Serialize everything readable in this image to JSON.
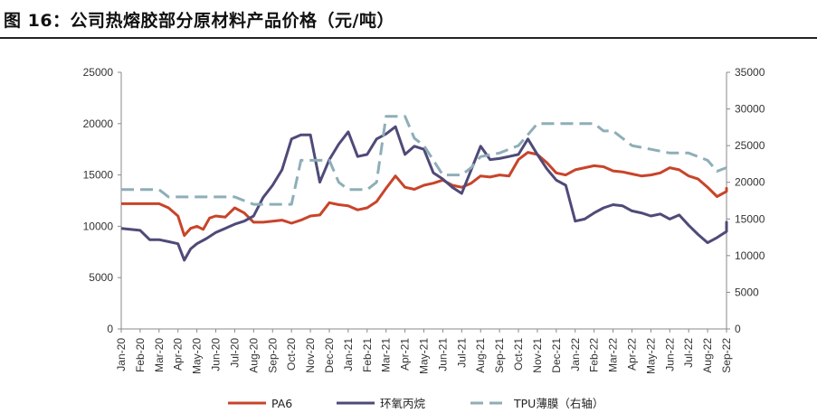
{
  "figure": {
    "title": "图 16：公司热熔胶部分原材料产品价格（元/吨）"
  },
  "chart_data": {
    "type": "line",
    "title": "图 16：公司热熔胶部分原材料产品价格（元/吨）",
    "x_ticks": [
      "Jan-20",
      "Feb-20",
      "Mar-20",
      "Apr-20",
      "May-20",
      "Jun-20",
      "Jul-20",
      "Aug-20",
      "Sep-20",
      "Oct-20",
      "Nov-20",
      "Dec-20",
      "Jan-21",
      "Feb-21",
      "Mar-21",
      "Apr-21",
      "May-21",
      "Jun-21",
      "Jul-21",
      "Aug-21",
      "Sep-21",
      "Oct-21",
      "Nov-21",
      "Dec-21",
      "Jan-22",
      "Feb-22",
      "Mar-22",
      "Apr-22",
      "May-22",
      "Jun-22",
      "Jul-22",
      "Aug-22",
      "Sep-22"
    ],
    "x_range": [
      "Jan-20",
      "Sep-22"
    ],
    "y_left": {
      "min": 0,
      "max": 25000,
      "ticks": [
        0,
        5000,
        10000,
        15000,
        20000,
        25000
      ]
    },
    "y_right": {
      "min": 0,
      "max": 35000,
      "ticks": [
        0,
        5000,
        10000,
        15000,
        20000,
        25000,
        30000,
        35000
      ]
    },
    "legend_position": "bottom",
    "grid": false,
    "series": [
      {
        "name": "PA6",
        "axis": "left",
        "color": "#c8442a",
        "style": "solid",
        "points": [
          [
            "Jan-20",
            12200
          ],
          [
            "Feb-20",
            12200
          ],
          [
            "Mar-20",
            12200
          ],
          [
            "Mar-20",
            11800
          ],
          [
            "Apr-20",
            11000
          ],
          [
            "Apr-20",
            9100
          ],
          [
            "Apr-20",
            9800
          ],
          [
            "May-20",
            10000
          ],
          [
            "May-20",
            9700
          ],
          [
            "May-20",
            10800
          ],
          [
            "Jun-20",
            11000
          ],
          [
            "Jun-20",
            10900
          ],
          [
            "Jul-20",
            11800
          ],
          [
            "Jul-20",
            11300
          ],
          [
            "Aug-20",
            10400
          ],
          [
            "Aug-20",
            10400
          ],
          [
            "Sep-20",
            10500
          ],
          [
            "Sep-20",
            10600
          ],
          [
            "Oct-20",
            10300
          ],
          [
            "Oct-20",
            10600
          ],
          [
            "Nov-20",
            11000
          ],
          [
            "Nov-20",
            11100
          ],
          [
            "Dec-20",
            12300
          ],
          [
            "Dec-20",
            12100
          ],
          [
            "Jan-21",
            12000
          ],
          [
            "Jan-21",
            11600
          ],
          [
            "Feb-21",
            11800
          ],
          [
            "Feb-21",
            12400
          ],
          [
            "Mar-21",
            13700
          ],
          [
            "Mar-21",
            14900
          ],
          [
            "Apr-21",
            13800
          ],
          [
            "Apr-21",
            13600
          ],
          [
            "May-21",
            14000
          ],
          [
            "May-21",
            14200
          ],
          [
            "Jun-21",
            14500
          ],
          [
            "Jun-21",
            14000
          ],
          [
            "Jul-21",
            13800
          ],
          [
            "Jul-21",
            14200
          ],
          [
            "Aug-21",
            14900
          ],
          [
            "Aug-21",
            14800
          ],
          [
            "Sep-21",
            15000
          ],
          [
            "Sep-21",
            14900
          ],
          [
            "Oct-21",
            16500
          ],
          [
            "Oct-21",
            17200
          ],
          [
            "Nov-21",
            17000
          ],
          [
            "Nov-21",
            16200
          ],
          [
            "Dec-21",
            15200
          ],
          [
            "Dec-21",
            15000
          ],
          [
            "Jan-22",
            15500
          ],
          [
            "Jan-22",
            15700
          ],
          [
            "Feb-22",
            15900
          ],
          [
            "Feb-22",
            15800
          ],
          [
            "Mar-22",
            15400
          ],
          [
            "Mar-22",
            15300
          ],
          [
            "Apr-22",
            15100
          ],
          [
            "Apr-22",
            14900
          ],
          [
            "May-22",
            15000
          ],
          [
            "May-22",
            15200
          ],
          [
            "Jun-22",
            15700
          ],
          [
            "Jun-22",
            15500
          ],
          [
            "Jul-22",
            14900
          ],
          [
            "Jul-22",
            14600
          ],
          [
            "Aug-22",
            13800
          ],
          [
            "Aug-22",
            12900
          ],
          [
            "Sep-22",
            13400
          ],
          [
            "Sep-22",
            13700
          ],
          [
            "Sep-22",
            13500
          ]
        ]
      },
      {
        "name": "环氧丙烷",
        "axis": "left",
        "color": "#4e4a78",
        "style": "solid",
        "points": [
          [
            "Jan-20",
            9800
          ],
          [
            "Feb-20",
            9600
          ],
          [
            "Feb-20",
            8700
          ],
          [
            "Mar-20",
            8700
          ],
          [
            "Mar-20",
            8500
          ],
          [
            "Apr-20",
            8300
          ],
          [
            "Apr-20",
            6700
          ],
          [
            "Apr-20",
            7800
          ],
          [
            "May-20",
            8300
          ],
          [
            "May-20",
            8800
          ],
          [
            "Jun-20",
            9400
          ],
          [
            "Jun-20",
            9800
          ],
          [
            "Jul-20",
            10200
          ],
          [
            "Jul-20",
            10500
          ],
          [
            "Aug-20",
            11000
          ],
          [
            "Aug-20",
            12800
          ],
          [
            "Sep-20",
            14000
          ],
          [
            "Sep-20",
            15500
          ],
          [
            "Oct-20",
            18500
          ],
          [
            "Oct-20",
            18900
          ],
          [
            "Nov-20",
            18900
          ],
          [
            "Nov-20",
            14300
          ],
          [
            "Dec-20",
            16500
          ],
          [
            "Dec-20",
            18000
          ],
          [
            "Jan-21",
            19200
          ],
          [
            "Jan-21",
            16800
          ],
          [
            "Feb-21",
            17000
          ],
          [
            "Feb-21",
            18500
          ],
          [
            "Mar-21",
            19000
          ],
          [
            "Mar-21",
            19700
          ],
          [
            "Apr-21",
            17000
          ],
          [
            "Apr-21",
            17800
          ],
          [
            "May-21",
            17500
          ],
          [
            "May-21",
            15200
          ],
          [
            "Jun-21",
            14600
          ],
          [
            "Jun-21",
            13800
          ],
          [
            "Jul-21",
            13200
          ],
          [
            "Jul-21",
            15500
          ],
          [
            "Aug-21",
            17800
          ],
          [
            "Aug-21",
            16500
          ],
          [
            "Sep-21",
            16600
          ],
          [
            "Sep-21",
            16800
          ],
          [
            "Oct-21",
            17000
          ],
          [
            "Oct-21",
            18500
          ],
          [
            "Nov-21",
            17000
          ],
          [
            "Nov-21",
            15600
          ],
          [
            "Dec-21",
            14500
          ],
          [
            "Dec-21",
            14000
          ],
          [
            "Jan-22",
            10500
          ],
          [
            "Jan-22",
            10700
          ],
          [
            "Feb-22",
            11300
          ],
          [
            "Feb-22",
            11800
          ],
          [
            "Mar-22",
            12100
          ],
          [
            "Mar-22",
            12000
          ],
          [
            "Apr-22",
            11500
          ],
          [
            "Apr-22",
            11300
          ],
          [
            "May-22",
            11000
          ],
          [
            "May-22",
            11200
          ],
          [
            "Jun-22",
            10700
          ],
          [
            "Jun-22",
            11100
          ],
          [
            "Jul-22",
            10100
          ],
          [
            "Jul-22",
            9200
          ],
          [
            "Aug-22",
            8400
          ],
          [
            "Aug-22",
            8900
          ],
          [
            "Sep-22",
            9500
          ],
          [
            "Sep-22",
            10400
          ],
          [
            "Sep-22",
            10000
          ]
        ]
      },
      {
        "name": "TPU薄膜（右轴）",
        "axis": "right",
        "color": "#8eaeb8",
        "style": "dashed",
        "points": [
          [
            "Jan-20",
            19000
          ],
          [
            "Feb-20",
            19000
          ],
          [
            "Mar-20",
            19000
          ],
          [
            "Mar-20",
            18000
          ],
          [
            "Apr-20",
            18000
          ],
          [
            "May-20",
            18000
          ],
          [
            "Jun-20",
            18000
          ],
          [
            "Jul-20",
            18000
          ],
          [
            "Aug-20",
            17000
          ],
          [
            "Sep-20",
            17000
          ],
          [
            "Oct-20",
            17000
          ],
          [
            "Oct-20",
            23000
          ],
          [
            "Nov-20",
            23000
          ],
          [
            "Dec-20",
            23000
          ],
          [
            "Dec-20",
            20000
          ],
          [
            "Jan-21",
            19000
          ],
          [
            "Feb-21",
            19000
          ],
          [
            "Feb-21",
            20000
          ],
          [
            "Mar-21",
            29000
          ],
          [
            "Apr-21",
            29000
          ],
          [
            "Apr-21",
            26000
          ],
          [
            "May-21",
            25000
          ],
          [
            "Jun-21",
            21000
          ],
          [
            "Jul-21",
            21000
          ],
          [
            "Jul-21",
            22000
          ],
          [
            "Aug-21",
            23500
          ],
          [
            "Sep-21",
            24000
          ],
          [
            "Oct-21",
            25000
          ],
          [
            "Oct-21",
            26500
          ],
          [
            "Nov-21",
            28000
          ],
          [
            "Dec-21",
            28000
          ],
          [
            "Jan-22",
            28000
          ],
          [
            "Feb-22",
            28000
          ],
          [
            "Feb-22",
            27000
          ],
          [
            "Mar-22",
            27000
          ],
          [
            "Apr-22",
            25000
          ],
          [
            "May-22",
            24500
          ],
          [
            "Jun-22",
            24000
          ],
          [
            "Jul-22",
            24000
          ],
          [
            "Aug-22",
            23000
          ],
          [
            "Aug-22",
            21500
          ],
          [
            "Sep-22",
            22000
          ],
          [
            "Sep-22",
            22000
          ]
        ]
      }
    ]
  }
}
